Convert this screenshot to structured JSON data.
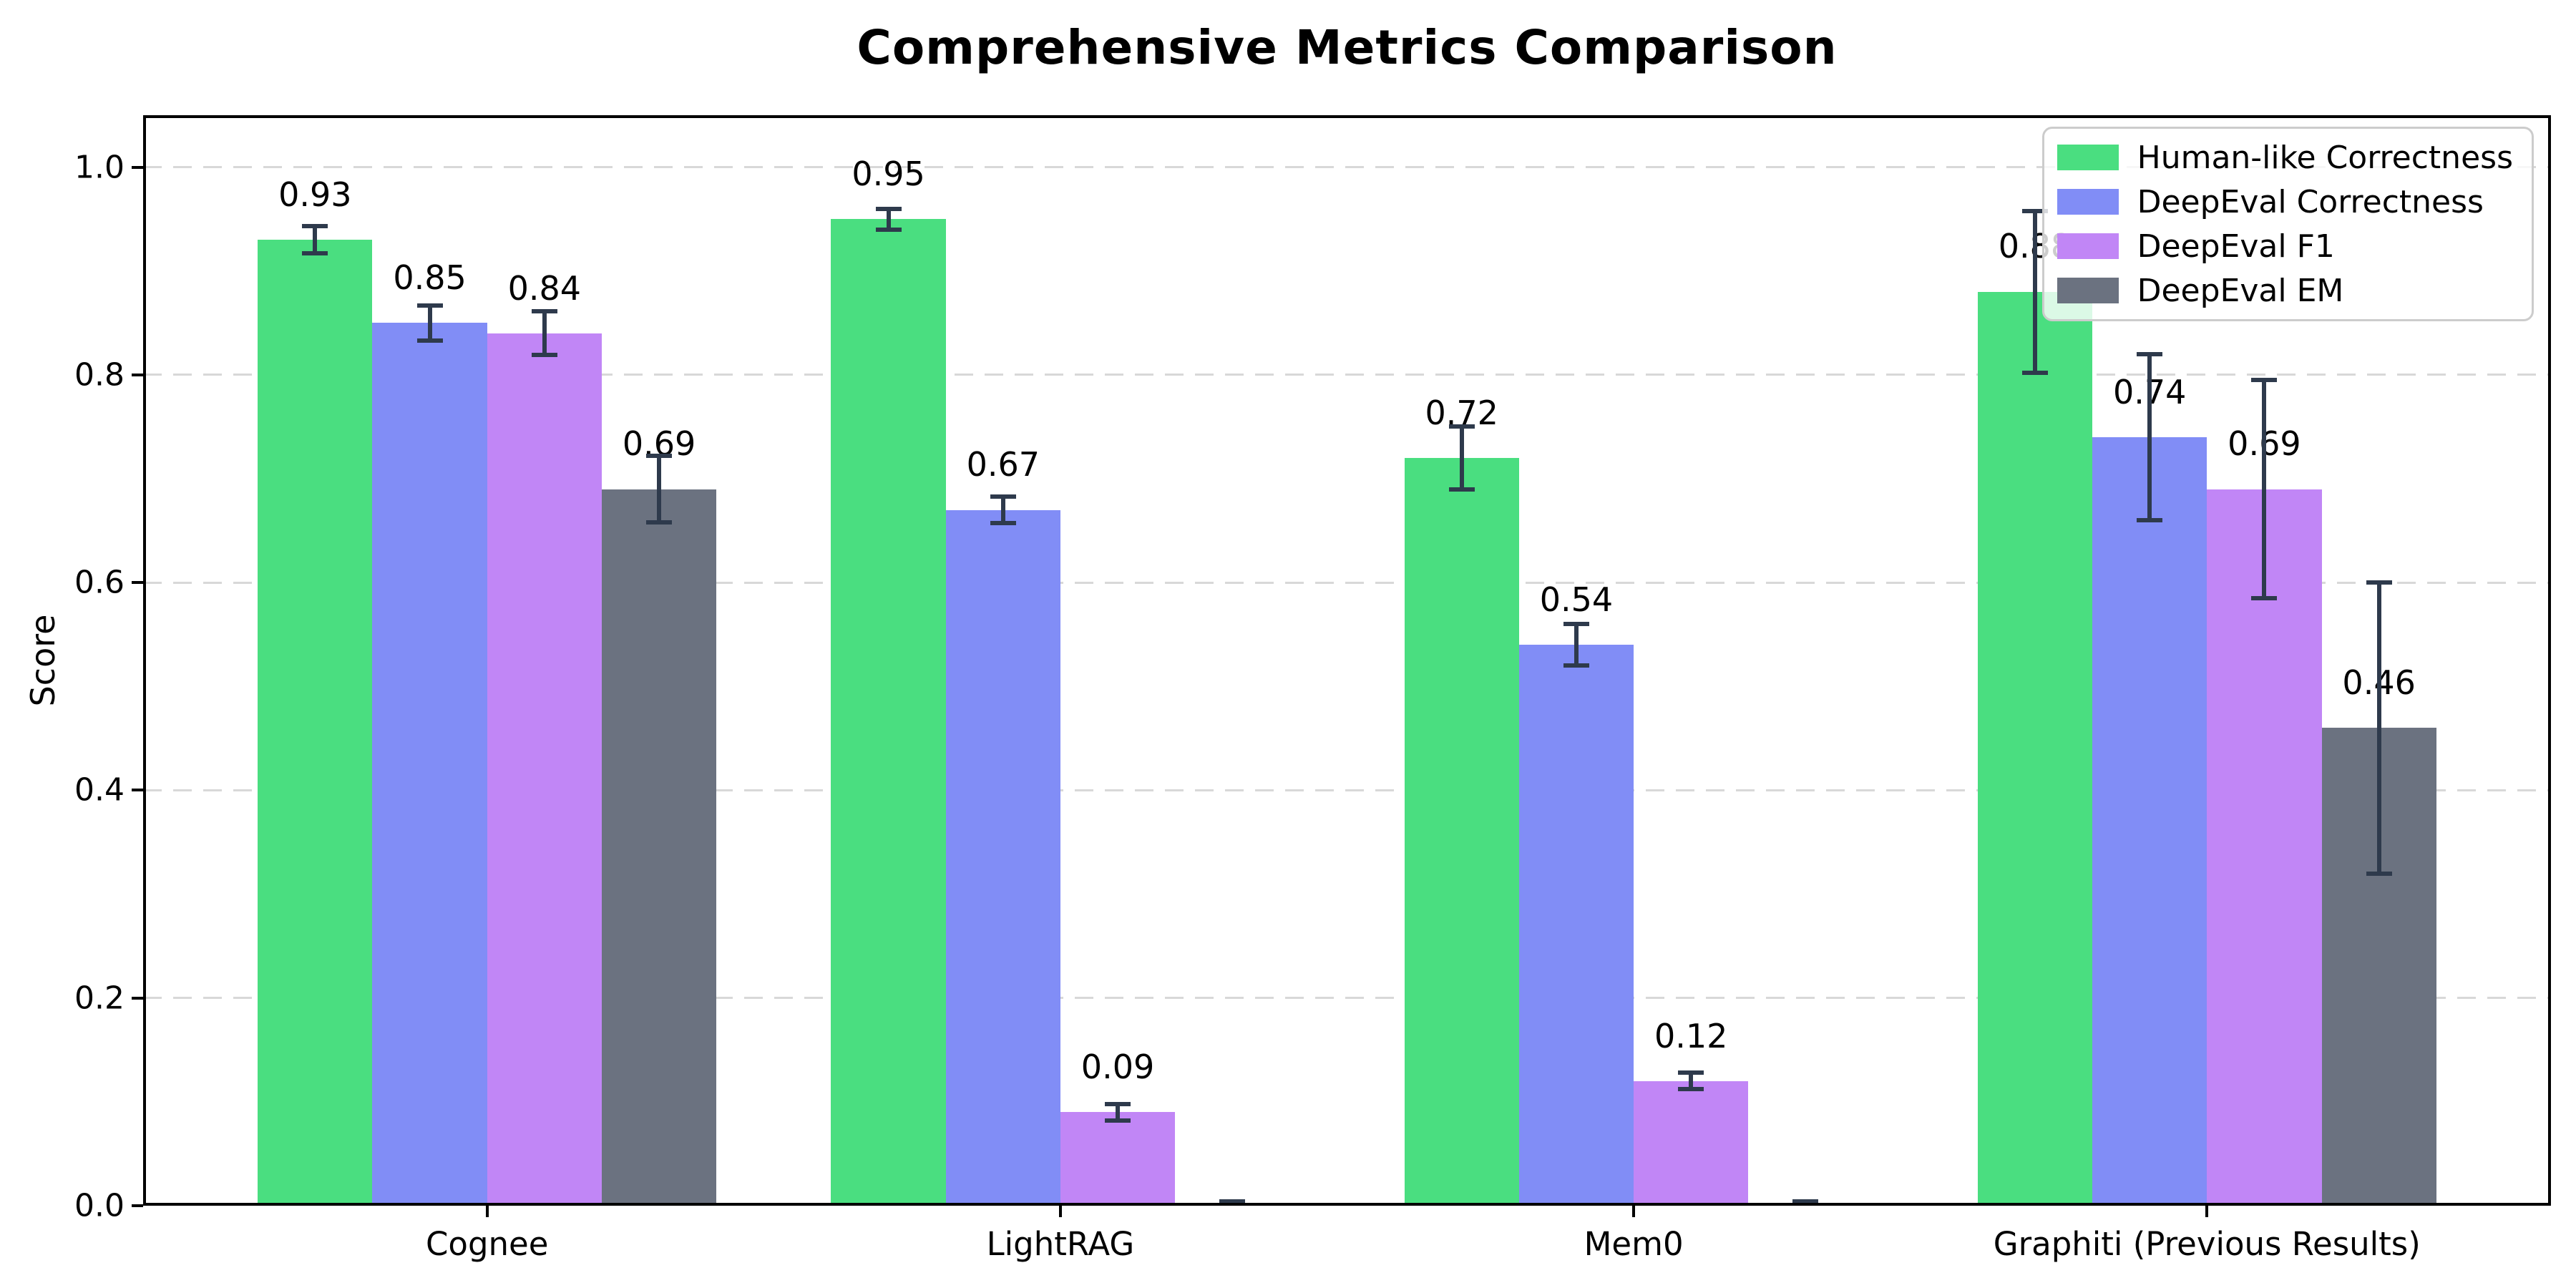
{
  "chart_data": {
    "type": "bar",
    "title": "Comprehensive Metrics Comparison",
    "xlabel": "",
    "ylabel": "Score",
    "ylim": [
      0,
      1.05
    ],
    "xlim": [
      -0.6,
      3.6
    ],
    "yticks": [
      0.0,
      0.2,
      0.4,
      0.6,
      0.8,
      1.0
    ],
    "ytick_labels": [
      "0.0",
      "0.2",
      "0.4",
      "0.6",
      "0.8",
      "1.0"
    ],
    "grid": {
      "axis": "y",
      "style": "dashed",
      "color": "#d8d8d8"
    },
    "legend": {
      "position": "upper right",
      "border_color": "#cccccc",
      "background": "rgba(255,255,255,0.8)"
    },
    "bar_width_units": 0.2,
    "categories": [
      "Cognee",
      "LightRAG",
      "Mem0",
      "Graphiti (Previous Results)"
    ],
    "series": [
      {
        "name": "Human-like Correctness",
        "color": "#4ade80",
        "values": [
          0.93,
          0.95,
          0.72,
          0.88
        ],
        "errors": [
          0.013,
          0.01,
          0.03,
          0.078
        ],
        "labels": [
          "0.93",
          "0.95",
          "0.72",
          "0.88"
        ]
      },
      {
        "name": "DeepEval Correctness",
        "color": "#818df6",
        "values": [
          0.85,
          0.67,
          0.54,
          0.74
        ],
        "errors": [
          0.017,
          0.013,
          0.02,
          0.08
        ],
        "labels": [
          "0.85",
          "0.67",
          "0.54",
          "0.74"
        ]
      },
      {
        "name": "DeepEval F1",
        "color": "#c186f6",
        "values": [
          0.84,
          0.09,
          0.12,
          0.69
        ],
        "errors": [
          0.021,
          0.008,
          0.008,
          0.105
        ],
        "labels": [
          "0.84",
          "0.09",
          "0.12",
          "0.69"
        ]
      },
      {
        "name": "DeepEval EM",
        "color": "#6b7280",
        "values": [
          0.69,
          0.0,
          0.0,
          0.46
        ],
        "errors": [
          0.032,
          0.004,
          0.004,
          0.14
        ],
        "labels": [
          "0.69",
          null,
          null,
          "0.46"
        ]
      }
    ],
    "error_bar_color": "#2e3a4c",
    "axis_color": "#000000",
    "value_label_offset_units": 0.025
  }
}
